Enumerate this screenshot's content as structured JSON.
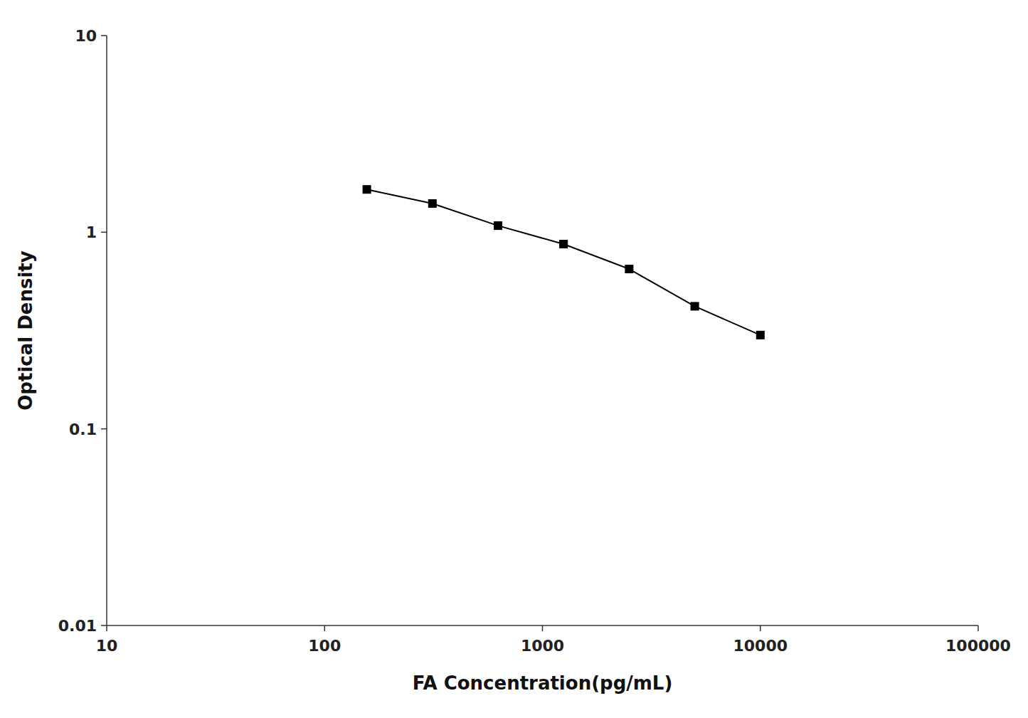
{
  "chart_data": {
    "type": "line",
    "xlabel": "FA Concentration(pg/mL)",
    "ylabel": "Optical Density",
    "x": [
      156.25,
      312.5,
      625,
      1250,
      2500,
      5000,
      10000
    ],
    "values": [
      1.65,
      1.4,
      1.08,
      0.87,
      0.65,
      0.42,
      0.3
    ],
    "color": "#000000",
    "marker": "square",
    "log": true,
    "grid": false,
    "xlim": [
      10,
      100000
    ],
    "ylim": [
      0.01,
      10
    ],
    "xticks": [
      10,
      100,
      1000,
      10000,
      100000
    ],
    "yticks": [
      0.01,
      0.1,
      1,
      10
    ]
  }
}
